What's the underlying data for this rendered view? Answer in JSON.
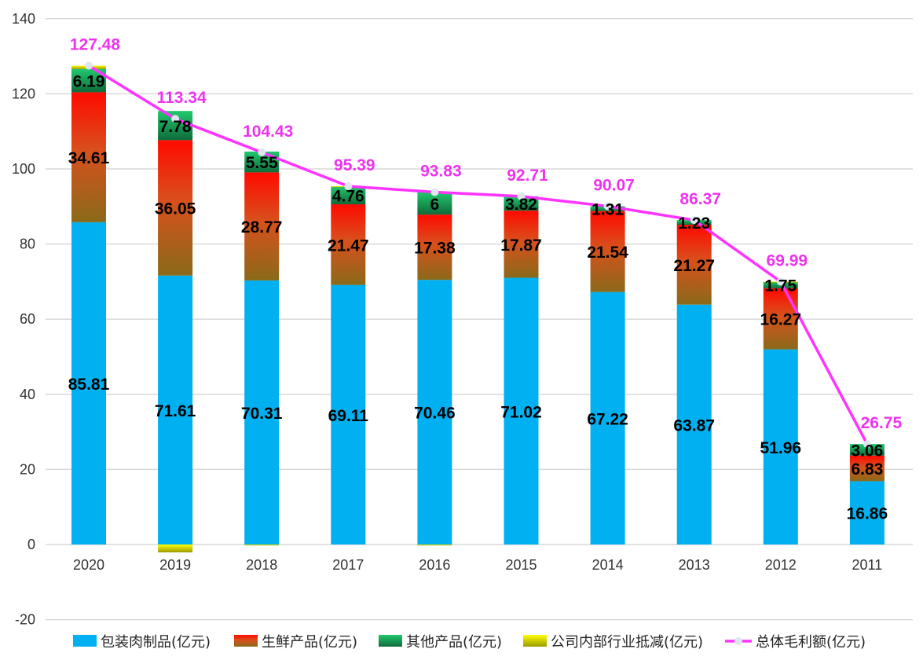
{
  "chart_data": {
    "type": "bar",
    "stacked": true,
    "categories": [
      "2020",
      "2019",
      "2018",
      "2017",
      "2016",
      "2015",
      "2014",
      "2013",
      "2012",
      "2011"
    ],
    "series": [
      {
        "name": "包装肉制品(亿元)",
        "type": "bar",
        "color": "#00b0f0",
        "values": [
          85.81,
          71.61,
          70.31,
          69.11,
          70.46,
          71.02,
          67.22,
          63.87,
          51.96,
          16.86
        ]
      },
      {
        "name": "生鲜产品(亿元)",
        "type": "bar",
        "color": "#ff0000",
        "values": [
          34.61,
          36.05,
          28.77,
          21.47,
          17.38,
          17.87,
          21.54,
          21.27,
          16.27,
          6.83
        ]
      },
      {
        "name": "其他产品(亿元)",
        "type": "bar",
        "color": "#1fbf6a",
        "values": [
          6.19,
          7.78,
          5.55,
          4.76,
          6,
          3.82,
          1.31,
          1.23,
          1.75,
          3.06
        ]
      },
      {
        "name": "公司内部行业抵减(亿元)",
        "type": "bar",
        "color": "#ffff00",
        "values": [
          0.87,
          -2.1,
          -0.2,
          0.05,
          -0.01,
          0,
          0,
          0,
          0.01,
          0
        ]
      },
      {
        "name": "总体毛利额(亿元)",
        "type": "line",
        "color": "#ff33ff",
        "values": [
          127.48,
          113.34,
          104.43,
          95.39,
          93.83,
          92.71,
          90.07,
          86.37,
          69.99,
          26.75
        ]
      }
    ],
    "ylim": [
      -20,
      140
    ],
    "yticks": [
      -20,
      0,
      20,
      40,
      60,
      80,
      100,
      120,
      140
    ],
    "grid": true,
    "legend": "bottom",
    "data_labels": true
  }
}
